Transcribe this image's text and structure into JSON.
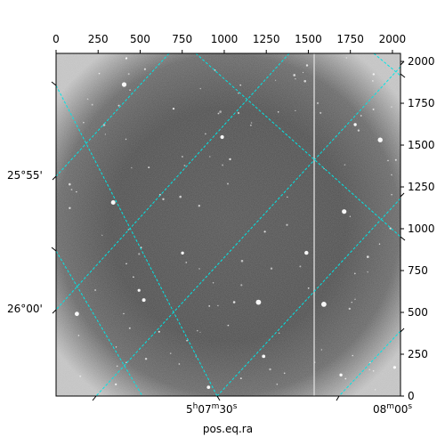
{
  "chart_data": {
    "type": "image",
    "title": "",
    "xlabel": "pos.eq.ra",
    "ylabel": "",
    "pixel_axes": {
      "x_range": [
        0,
        2048
      ],
      "y_range": [
        0,
        2048
      ],
      "x_ticks": [
        0,
        250,
        500,
        750,
        1000,
        1250,
        1500,
        1750,
        2000
      ],
      "y_ticks": [
        0,
        250,
        500,
        750,
        1000,
        1250,
        1500,
        1750,
        2000
      ]
    },
    "world_axes": {
      "ra_tick_labels": [
        "5h07m30s",
        "08m00s"
      ],
      "dec_tick_labels": [
        "25°55'",
        "26°00'"
      ]
    },
    "image_description": "grayscale astronomical frame with vignetting, scattered point sources and one vertical bright column",
    "grid_color": "#00e5e5",
    "grid": true
  }
}
